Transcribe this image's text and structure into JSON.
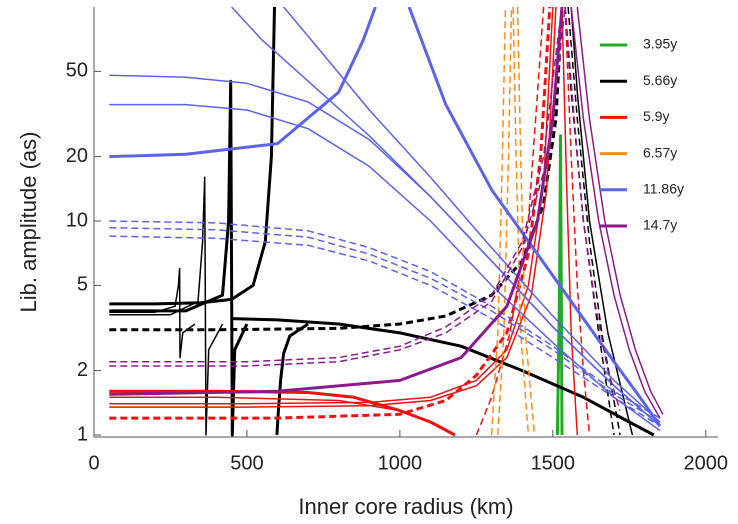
{
  "chart_data": {
    "type": "line",
    "xlabel": "Inner core radius (km)",
    "ylabel": "Lib. amplitude (as)",
    "xlim": [
      0,
      2040
    ],
    "ylim": [
      1,
      100
    ],
    "ylog": true,
    "xticks": [
      0,
      500,
      1000,
      1500,
      2000
    ],
    "yticks": [
      1,
      2,
      5,
      10,
      20,
      50
    ],
    "legend": "top-right",
    "series": [
      {
        "name": "3.95y",
        "color": "#22aa22",
        "curves": [
          {
            "thick": true,
            "x": [
              1515,
              1522,
              1525,
              1530
            ],
            "values": [
              1,
              5,
              25,
              1
            ]
          }
        ]
      },
      {
        "name": "5.66y",
        "color": "#000000",
        "curves": [
          {
            "thick": true,
            "x": [
              50,
              200,
              350,
              450,
              520,
              560,
              580,
              590
            ],
            "values": [
              4.1,
              4.1,
              4.15,
              4.3,
              5,
              8,
              20,
              100
            ]
          },
          {
            "thick": true,
            "x": [
              598,
              603,
              610,
              620,
              640,
              700
            ],
            "values": [
              1,
              1.3,
              1.8,
              2.4,
              2.9,
              3.3
            ]
          },
          {
            "thick": true,
            "x": [
              450,
              600,
              800,
              1000,
              1200,
              1400,
              1600,
              1750,
              1830
            ],
            "values": [
              3.5,
              3.45,
              3.3,
              3.0,
              2.6,
              2.0,
              1.5,
              1.15,
              1
            ]
          },
          {
            "x": [
              50,
              200,
              265,
              276,
              280,
              281,
              290,
              330
            ],
            "values": [
              3.75,
              3.75,
              4,
              5,
              6,
              2.3,
              3,
              3.3
            ]
          },
          {
            "x": [
              50,
              250,
              340,
              355,
              362,
              366,
              375,
              420
            ],
            "values": [
              3.65,
              3.65,
              4.2,
              8,
              16,
              1,
              2.5,
              3.3
            ]
          },
          {
            "thick": true,
            "x": [
              50,
              300,
              420,
              440,
              447,
              452,
              460,
              500
            ],
            "values": [
              3.8,
              3.8,
              4.5,
              10,
              45,
              1,
              2.5,
              3.3
            ]
          },
          {
            "thick": true,
            "dashed": true,
            "x": [
              50,
              400,
              800,
              1000,
              1150,
              1300,
              1400,
              1470,
              1510,
              1530
            ],
            "values": [
              3.1,
              3.1,
              3.15,
              3.3,
              3.6,
              4.5,
              6.5,
              12,
              30,
              100
            ]
          },
          {
            "dashed": true,
            "x": [
              1540,
              1560,
              1600,
              1650,
              1700
            ],
            "values": [
              100,
              40,
              10,
              3,
              1
            ]
          },
          {
            "dashed": true,
            "x": [
              1550,
              1580,
              1620,
              1660,
              1720
            ],
            "values": [
              100,
              30,
              8,
              3,
              1
            ]
          },
          {
            "x": [
              1560,
              1580,
              1620,
              1680,
              1760
            ],
            "values": [
              100,
              40,
              10,
              3,
              1
            ]
          }
        ]
      },
      {
        "name": "5.9y",
        "color": "#ee1111",
        "curves": [
          {
            "thick": true,
            "x": [
              50,
              400,
              700,
              850,
              1000,
              1100,
              1180
            ],
            "values": [
              1.6,
              1.6,
              1.58,
              1.5,
              1.3,
              1.15,
              1
            ]
          },
          {
            "x": [
              50,
              400,
              800,
              1000,
              1100,
              1180
            ],
            "values": [
              1.5,
              1.5,
              1.45,
              1.3,
              1.15,
              1
            ]
          },
          {
            "x": [
              50,
              500,
              900,
              1100,
              1250,
              1350,
              1420,
              1470,
              1500
            ],
            "values": [
              1.4,
              1.4,
              1.42,
              1.5,
              1.8,
              2.5,
              5,
              15,
              100
            ]
          },
          {
            "x": [
              50,
              500,
              900,
              1100,
              1250,
              1350,
              1430,
              1480,
              1510
            ],
            "values": [
              1.35,
              1.35,
              1.37,
              1.45,
              1.7,
              2.3,
              4.5,
              14,
              100
            ]
          },
          {
            "thick": true,
            "dashed": true,
            "x": [
              50,
              600,
              1000,
              1150,
              1250,
              1350,
              1420,
              1460,
              1490
            ],
            "values": [
              1.2,
              1.2,
              1.25,
              1.45,
              1.9,
              3,
              7,
              20,
              100
            ]
          },
          {
            "dashed": true,
            "x": [
              1540,
              1560,
              1580,
              1600,
              1620
            ],
            "values": [
              100,
              20,
              5,
              2,
              1
            ]
          },
          {
            "x": [
              1530,
              1545,
              1560,
              1580
            ],
            "values": [
              100,
              15,
              3,
              1
            ]
          },
          {
            "dashed": true,
            "x": [
              1250,
              1300,
              1360,
              1420,
              1470
            ],
            "values": [
              1,
              1.5,
              3,
              10,
              100
            ]
          }
        ]
      },
      {
        "name": "6.57y",
        "color": "#ff8c1a",
        "curves": [
          {
            "dashed": true,
            "x": [
              1300,
              1320,
              1335,
              1345
            ],
            "values": [
              1,
              3,
              20,
              100
            ]
          },
          {
            "dashed": true,
            "x": [
              1320,
              1340,
              1355,
              1365
            ],
            "values": [
              1,
              3,
              20,
              100
            ]
          },
          {
            "dashed": true,
            "x": [
              1370,
              1380,
              1395,
              1420
            ],
            "values": [
              100,
              20,
              3,
              1
            ]
          },
          {
            "dashed": true,
            "x": [
              1385,
              1395,
              1410,
              1440
            ],
            "values": [
              100,
              20,
              3,
              1
            ]
          }
        ]
      },
      {
        "name": "11.86y",
        "color": "#5b63e8",
        "curves": [
          {
            "thick": true,
            "x": [
              50,
              300,
              600,
              800,
              880,
              920
            ],
            "values": [
              20,
              20.5,
              23,
              40,
              70,
              100
            ]
          },
          {
            "thick": true,
            "x": [
              1030,
              1150,
              1300,
              1450,
              1600,
              1700,
              1800,
              1850
            ],
            "values": [
              100,
              35,
              14,
              7,
              3.5,
              2.2,
              1.4,
              1.1
            ]
          },
          {
            "x": [
              50,
              300,
              500,
              700,
              900,
              1100,
              1300,
              1500,
              1700,
              1850
            ],
            "values": [
              48,
              47,
              44,
              36,
              24,
              13,
              6.5,
              3.2,
              1.7,
              1.1
            ]
          },
          {
            "x": [
              50,
              300,
              500,
              700,
              900,
              1100,
              1300,
              1500,
              1700,
              1850
            ],
            "values": [
              35,
              35,
              33,
              27,
              18,
              10,
              5,
              2.7,
              1.5,
              1.05
            ]
          },
          {
            "x": [
              450,
              550,
              700,
              900,
              1100,
              1300,
              1500,
              1700,
              1850
            ],
            "values": [
              100,
              70,
              45,
              25,
              13,
              6.5,
              3.2,
              1.7,
              1.1
            ]
          },
          {
            "x": [
              620,
              750,
              900,
              1100,
              1300,
              1500,
              1700,
              1850
            ],
            "values": [
              100,
              60,
              33,
              16,
              7.5,
              3.6,
              1.8,
              1.15
            ]
          },
          {
            "dashed": true,
            "x": [
              50,
              400,
              700,
              900,
              1100,
              1300,
              1500,
              1700,
              1850
            ],
            "values": [
              10,
              9.8,
              9,
              7.5,
              5.8,
              4,
              2.6,
              1.6,
              1.2
            ]
          },
          {
            "dashed": true,
            "x": [
              50,
              400,
              700,
              900,
              1100,
              1300,
              1500,
              1700,
              1850
            ],
            "values": [
              9.3,
              9.1,
              8.4,
              7,
              5.4,
              3.8,
              2.5,
              1.55,
              1.15
            ]
          },
          {
            "dashed": true,
            "x": [
              50,
              400,
              700,
              900,
              1100,
              1300,
              1500,
              1700,
              1850
            ],
            "values": [
              8.5,
              8.3,
              7.7,
              6.5,
              5,
              3.5,
              2.3,
              1.5,
              1.1
            ]
          }
        ]
      },
      {
        "name": "14.7y",
        "color": "#8b1a8b",
        "curves": [
          {
            "dashed": true,
            "x": [
              50,
              500,
              800,
              1000,
              1150,
              1300,
              1400,
              1470,
              1510,
              1530
            ],
            "values": [
              2.2,
              2.2,
              2.3,
              2.6,
              3.2,
              4.5,
              8,
              20,
              60,
              100
            ]
          },
          {
            "dashed": true,
            "x": [
              50,
              500,
              800,
              1000,
              1150,
              1300,
              1400,
              1480,
              1520,
              1540
            ],
            "values": [
              2.1,
              2.1,
              2.2,
              2.5,
              3,
              4.2,
              7.5,
              19,
              55,
              100
            ]
          },
          {
            "thick": true,
            "x": [
              50,
              600,
              1000,
              1200,
              1350,
              1450,
              1500,
              1530
            ],
            "values": [
              1.55,
              1.6,
              1.8,
              2.3,
              4,
              10,
              30,
              100
            ]
          },
          {
            "x": [
              1560,
              1600,
              1650,
              1700,
              1750,
              1800,
              1850
            ],
            "values": [
              100,
              30,
              10,
              4.5,
              2.5,
              1.6,
              1.2
            ]
          },
          {
            "x": [
              1580,
              1620,
              1670,
              1720,
              1770,
              1820,
              1860
            ],
            "values": [
              100,
              30,
              10,
              4.5,
              2.5,
              1.6,
              1.25
            ]
          },
          {
            "dashed": true,
            "x": [
              1540,
              1570,
              1600,
              1640,
              1680,
              1720
            ],
            "values": [
              100,
              30,
              10,
              4,
              2,
              1.3
            ]
          }
        ]
      }
    ]
  }
}
